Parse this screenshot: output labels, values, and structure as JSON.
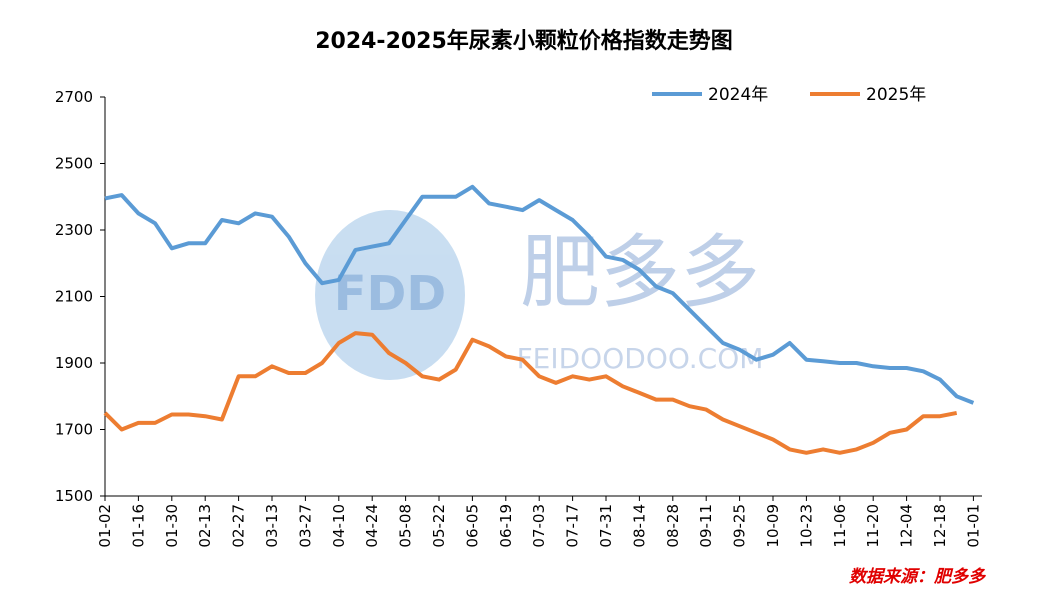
{
  "chart_data": {
    "type": "line",
    "title": "2024-2025年尿素小颗粒价格指数走势图",
    "source": "数据来源：肥多多",
    "watermark": {
      "logo": "FDD",
      "brand": "肥多多",
      "site": "FEIDOODOO.COM"
    },
    "categories": [
      "01-02",
      null,
      "01-16",
      null,
      "01-30",
      null,
      "02-13",
      null,
      "02-27",
      null,
      "03-13",
      null,
      "03-27",
      null,
      "04-10",
      null,
      "04-24",
      null,
      "05-08",
      null,
      "05-22",
      null,
      "06-05",
      null,
      "06-19",
      null,
      "07-03",
      null,
      "07-17",
      null,
      "07-31",
      null,
      "08-14",
      null,
      "08-28",
      null,
      "09-11",
      null,
      "09-25",
      null,
      "10-09",
      null,
      "10-23",
      null,
      "11-06",
      null,
      "11-20",
      null,
      "12-04",
      null,
      "12-18",
      null,
      "01-01"
    ],
    "series": [
      {
        "name": "2024年",
        "color": "#5b9bd5",
        "values": [
          2395,
          2405,
          2350,
          2320,
          2245,
          2260,
          2260,
          2330,
          2320,
          2350,
          2340,
          2280,
          2200,
          2140,
          2150,
          2240,
          2250,
          2260,
          2330,
          2400,
          2400,
          2400,
          2430,
          2380,
          2370,
          2360,
          2390,
          2360,
          2330,
          2280,
          2220,
          2210,
          2180,
          2130,
          2110,
          2060,
          2010,
          1960,
          1940,
          1910,
          1925,
          1960,
          1910,
          1905,
          1900,
          1900,
          1890,
          1885,
          1885,
          1875,
          1850,
          1800,
          1780
        ]
      },
      {
        "name": "2025年",
        "color": "#ed7d31",
        "values": [
          1750,
          1700,
          1720,
          1720,
          1745,
          1745,
          1740,
          1730,
          1860,
          1860,
          1890,
          1870,
          1870,
          1900,
          1960,
          1990,
          1985,
          1930,
          1900,
          1860,
          1850,
          1880,
          1970,
          1950,
          1920,
          1910,
          1860,
          1840,
          1860,
          1850,
          1860,
          1830,
          1810,
          1790,
          1790,
          1770,
          1760,
          1730,
          1710,
          1690,
          1670,
          1640,
          1630,
          1640,
          1630,
          1640,
          1660,
          1690,
          1700,
          1740,
          1740,
          1750,
          null
        ]
      }
    ],
    "ylim": [
      1500,
      2700
    ],
    "yticks": [
      1500,
      1700,
      1900,
      2100,
      2300,
      2500,
      2700
    ],
    "grid": false,
    "legend": "top-right"
  }
}
